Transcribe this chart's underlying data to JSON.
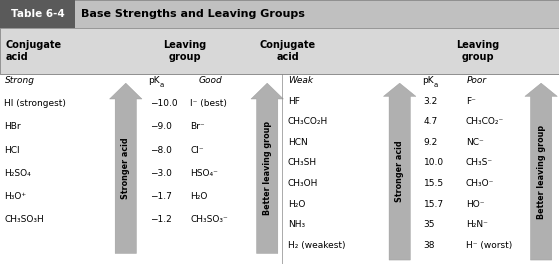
{
  "title_box": "Table 6-4",
  "title_text": "Base Strengths and Leaving Groups",
  "title_box_bg": "#5a5a5a",
  "title_bar_bg": "#c0c0c0",
  "header_row_bg": "#d8d8d8",
  "table_bg": "#ffffff",
  "border_color": "#999999",
  "left": {
    "category_label": "Strong",
    "pka_header": "pK",
    "pka_sub": "a",
    "lg_header": "Good",
    "acids": [
      "HI (strongest)",
      "HBr",
      "HCl",
      "H₂SO₄",
      "H₃O⁺",
      "CH₃SO₃H"
    ],
    "pkas": [
      "−10.0",
      "−9.0",
      "−8.0",
      "−3.0",
      "−1.7",
      "−1.2"
    ],
    "lgs": [
      "I⁻ (best)",
      "Br⁻",
      "Cl⁻",
      "HSO₄⁻",
      "H₂O",
      "CH₃SO₃⁻"
    ],
    "arrow1_label": "Stronger acid",
    "arrow2_label": "Better leaving group"
  },
  "right": {
    "category_label": "Weak",
    "pka_header": "pK",
    "pka_sub": "a",
    "lg_header": "Poor",
    "acids": [
      "HF",
      "CH₃CO₂H",
      "HCN",
      "CH₃SH",
      "CH₃OH",
      "H₂O",
      "NH₃",
      "H₂ (weakest)"
    ],
    "pkas": [
      "3.2",
      "4.7",
      "9.2",
      "10.0",
      "15.5",
      "15.7",
      "35",
      "38"
    ],
    "lgs": [
      "F⁻",
      "CH₃CO₂⁻",
      "NC⁻",
      "CH₃S⁻",
      "CH₃O⁻",
      "HO⁻",
      "H₂N⁻",
      "H⁻ (worst)"
    ],
    "arrow1_label": "Stronger acid",
    "arrow2_label": "Better leaving group"
  },
  "arrow_color": "#b0b0b0",
  "arrow_edge_color": "#888888"
}
